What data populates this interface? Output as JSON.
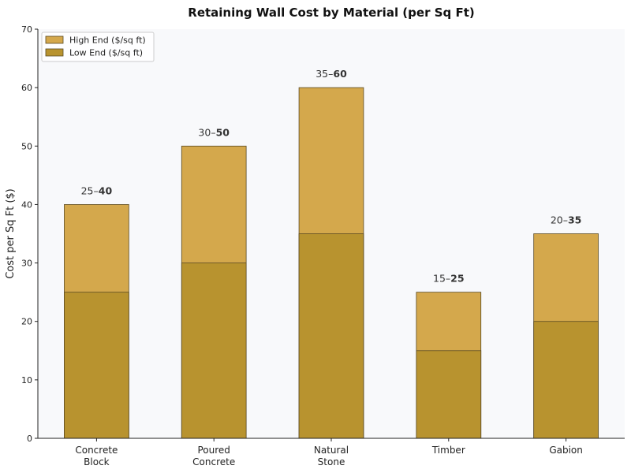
{
  "chart_data": {
    "type": "bar",
    "title": "Retaining Wall Cost by Material (per Sq Ft)",
    "xlabel": "",
    "ylabel": "Cost per Sq Ft ($)",
    "ylim": [
      0,
      70
    ],
    "yticks": [
      0,
      10,
      20,
      30,
      40,
      50,
      60,
      70
    ],
    "grid": false,
    "legend_position": "top-left",
    "categories": [
      [
        "Concrete",
        "Block"
      ],
      [
        "Poured",
        "Concrete"
      ],
      [
        "Natural",
        "Stone"
      ],
      [
        "Timber"
      ],
      [
        "Gabion"
      ]
    ],
    "series": [
      {
        "name": "High End ($/sq ft)",
        "values": [
          40,
          50,
          60,
          25,
          35
        ],
        "color": "#d4a84c"
      },
      {
        "name": "Low End ($/sq ft)",
        "values": [
          25,
          30,
          35,
          15,
          20
        ],
        "color": "#b8932f"
      }
    ],
    "data_labels": [
      {
        "low": "25",
        "sep": "–",
        "high": "40"
      },
      {
        "low": "30",
        "sep": "–",
        "high": "50"
      },
      {
        "low": "35",
        "sep": "–",
        "high": "60"
      },
      {
        "low": "15",
        "sep": "–",
        "high": "25"
      },
      {
        "low": "20",
        "sep": "–",
        "high": "35"
      }
    ],
    "colors": {
      "plot_bg": "#f8f9fb",
      "edge": "#5a4a22"
    }
  }
}
